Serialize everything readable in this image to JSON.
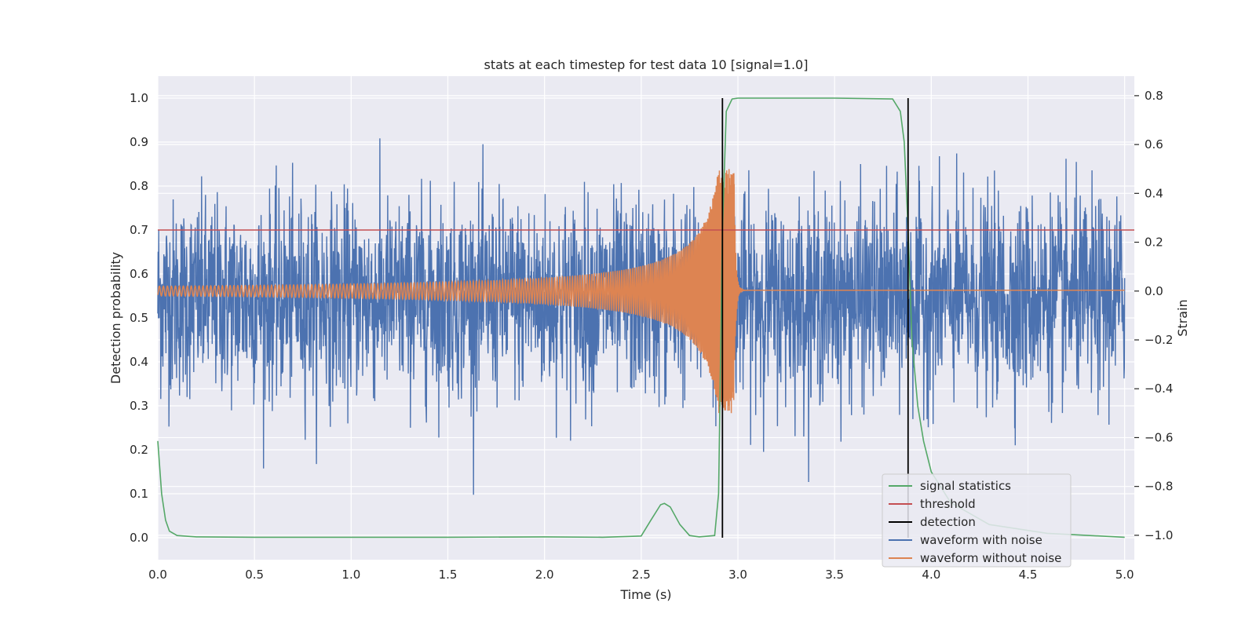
{
  "chart_data": {
    "type": "line",
    "title": "stats at each timestep for test data 10 [signal=1.0]",
    "xlabel": "Time (s)",
    "ylabel": "Detection probability",
    "ylabel_right": "Strain",
    "xlim": [
      0.0,
      5.05
    ],
    "ylim": [
      -0.05,
      1.05
    ],
    "ylim_right": [
      -1.1,
      0.88
    ],
    "xticks": [
      0.0,
      0.5,
      1.0,
      1.5,
      2.0,
      2.5,
      3.0,
      3.5,
      4.0,
      4.5,
      5.0
    ],
    "xtick_labels": [
      "0.0",
      "0.5",
      "1.0",
      "1.5",
      "2.0",
      "2.5",
      "3.0",
      "3.5",
      "4.0",
      "4.5",
      "5.0"
    ],
    "yticks": [
      0.0,
      0.1,
      0.2,
      0.3,
      0.4,
      0.5,
      0.6,
      0.7,
      0.8,
      0.9,
      1.0
    ],
    "ytick_labels": [
      "0.0",
      "0.1",
      "0.2",
      "0.3",
      "0.4",
      "0.5",
      "0.6",
      "0.7",
      "0.8",
      "0.9",
      "1.0"
    ],
    "yticks_right": [
      -1.0,
      -0.8,
      -0.6,
      -0.4,
      -0.2,
      0.0,
      0.2,
      0.4,
      0.6,
      0.8
    ],
    "ytick_labels_right": [
      "−1.0",
      "−0.8",
      "−0.6",
      "−0.4",
      "−0.2",
      "0.0",
      "0.2",
      "0.4",
      "0.6",
      "0.8"
    ],
    "grid": true,
    "legend_position": "lower-right",
    "series": [
      {
        "name": "signal statistics",
        "axis": "left",
        "color": "#55a868",
        "x": [
          0.0,
          0.02,
          0.04,
          0.06,
          0.1,
          0.2,
          0.5,
          1.0,
          1.5,
          2.0,
          2.3,
          2.5,
          2.55,
          2.6,
          2.62,
          2.65,
          2.7,
          2.75,
          2.8,
          2.88,
          2.9,
          2.92,
          2.94,
          2.97,
          3.0,
          3.5,
          3.8,
          3.84,
          3.86,
          3.88,
          3.9,
          3.93,
          3.96,
          4.0,
          4.1,
          4.3,
          4.6,
          5.0
        ],
        "y": [
          0.22,
          0.1,
          0.04,
          0.015,
          0.005,
          0.002,
          0.001,
          0.001,
          0.001,
          0.002,
          0.001,
          0.004,
          0.04,
          0.075,
          0.078,
          0.07,
          0.03,
          0.005,
          0.002,
          0.005,
          0.1,
          0.7,
          0.97,
          0.998,
          1.0,
          1.0,
          0.998,
          0.97,
          0.9,
          0.7,
          0.45,
          0.3,
          0.22,
          0.15,
          0.08,
          0.03,
          0.01,
          0.001
        ]
      },
      {
        "name": "threshold",
        "axis": "left",
        "color": "#c44e52",
        "x": [
          0.0,
          5.05
        ],
        "y": [
          0.7,
          0.7
        ]
      },
      {
        "name": "detection",
        "axis": "left",
        "color": "#000000",
        "vlines": [
          2.92,
          3.88
        ],
        "ymin": 0.0,
        "ymax": 1.0
      },
      {
        "name": "waveform with noise",
        "axis": "right",
        "color": "#4c72b0",
        "x_range": [
          0.0,
          5.0
        ],
        "amplitude_range": [
          -1.0,
          0.8
        ],
        "typical_range": [
          -0.55,
          0.45
        ]
      },
      {
        "name": "waveform without noise",
        "axis": "right",
        "color": "#dd8452",
        "x_range": [
          0.0,
          5.0
        ],
        "chirp_start_amplitude": 0.02,
        "chirp_peak_time": 2.98,
        "chirp_peak_amplitude": 0.5,
        "ringdown_end": 3.05,
        "ringdown_residual": 0.003
      }
    ]
  }
}
